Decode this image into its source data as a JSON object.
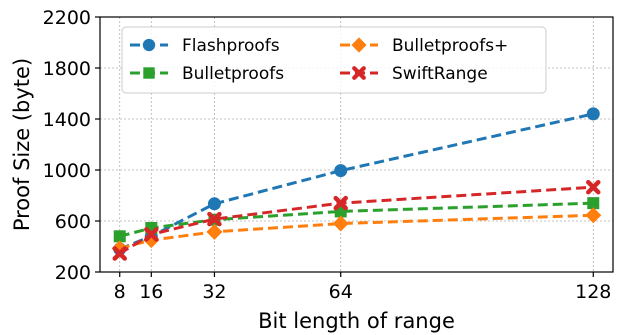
{
  "chart_data": {
    "type": "line",
    "xlabel": "Bit length of range",
    "ylabel": "Proof Size (byte)",
    "x": [
      8,
      16,
      32,
      64,
      128
    ],
    "xlim": [
      3,
      133
    ],
    "ylim": [
      200,
      2200
    ],
    "xticks": [
      8,
      16,
      32,
      64,
      128
    ],
    "yticks": [
      200,
      600,
      1000,
      1400,
      1800,
      2200
    ],
    "grid": true,
    "legend_position": "top-left",
    "series": [
      {
        "name": "Flashproofs",
        "values": [
          380,
          480,
          735,
          995,
          1440
        ],
        "color": "#1f77b4",
        "marker": "circle"
      },
      {
        "name": "Bulletproofs",
        "values": [
          480,
          545,
          610,
          675,
          740
        ],
        "color": "#2ca02c",
        "marker": "square"
      },
      {
        "name": "Bulletproofs+",
        "values": [
          385,
          450,
          515,
          580,
          645
        ],
        "color": "#ff7f0e",
        "marker": "diamond"
      },
      {
        "name": "SwiftRange",
        "values": [
          345,
          495,
          615,
          740,
          865
        ],
        "color": "#d62728",
        "marker": "x"
      }
    ]
  }
}
